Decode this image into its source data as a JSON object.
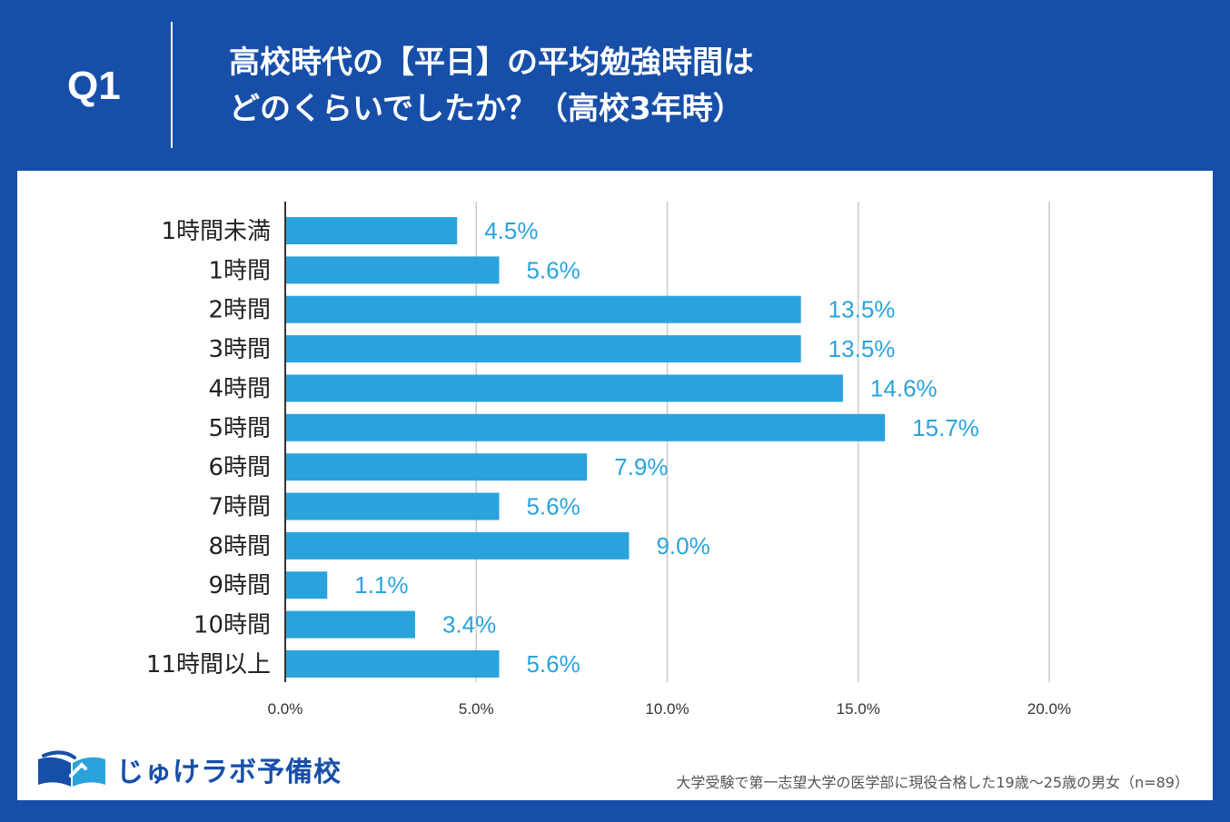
{
  "header": {
    "question_label": "Q1",
    "title_line1": "高校時代の【平日】の平均勉強時間は",
    "title_line2": "どのくらいでしたか？（高校3年時）"
  },
  "chart_data": {
    "type": "bar",
    "orientation": "horizontal",
    "categories": [
      "1時間未満",
      "1時間",
      "2時間",
      "3時間",
      "4時間",
      "5時間",
      "6時間",
      "7時間",
      "8時間",
      "9時間",
      "10時間",
      "11時間以上"
    ],
    "values": [
      4.5,
      5.6,
      13.5,
      13.5,
      14.6,
      15.7,
      7.9,
      5.6,
      9.0,
      1.1,
      3.4,
      5.6
    ],
    "value_labels": [
      "4.5%",
      "5.6%",
      "13.5%",
      "13.5%",
      "14.6%",
      "15.7%",
      "7.9%",
      "5.6%",
      "9.0%",
      "1.1%",
      "3.4%",
      "5.6%"
    ],
    "x_ticks": [
      0,
      5,
      10,
      15,
      20
    ],
    "x_tick_labels": [
      "0.0%",
      "5.0%",
      "10.0%",
      "15.0%",
      "20.0%"
    ],
    "xlim": [
      0,
      20
    ],
    "grid": true,
    "bar_color": "#2aa3dd",
    "label_color": "#2aa3dd"
  },
  "footer": {
    "logo_text": "じゅけラボ予備校",
    "footnote": "大学受験で第一志望大学の医学部に現役合格した19歳～25歳の男女（n=89）"
  },
  "colors": {
    "background": "#174fa8",
    "panel": "#ffffff",
    "gridline": "#cccccc",
    "axis": "#333333"
  }
}
